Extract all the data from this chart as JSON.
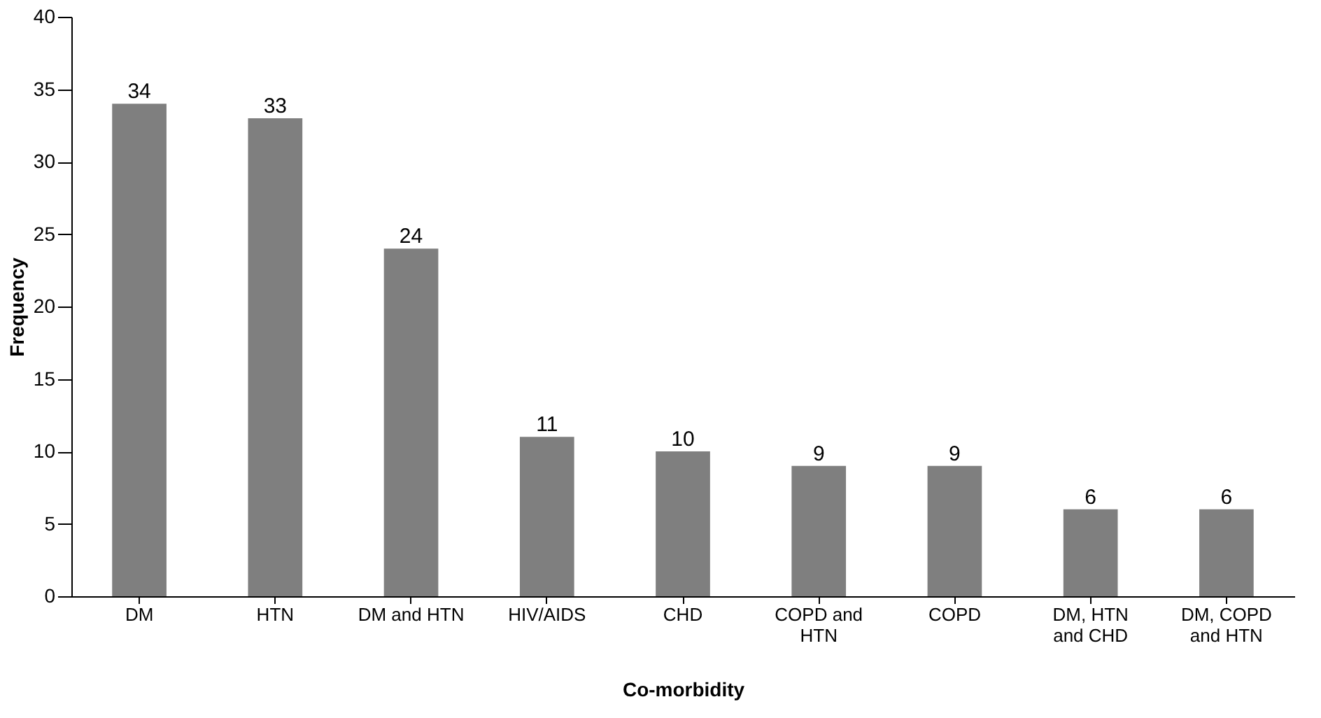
{
  "chart_data": {
    "type": "bar",
    "xlabel": "Co-morbidity",
    "ylabel": "Frequency",
    "categories": [
      "DM",
      "HTN",
      "DM and HTN",
      "HIV/AIDS",
      "CHD",
      "COPD and HTN",
      "COPD",
      "DM, HTN and CHD",
      "DM, COPD and HTN"
    ],
    "values": [
      34,
      33,
      24,
      11,
      10,
      9,
      9,
      6,
      6
    ],
    "color": "#7f7f7f",
    "ylim": [
      0,
      40
    ],
    "yticks": [
      0,
      5,
      10,
      15,
      20,
      25,
      30,
      35,
      40
    ],
    "grid": false,
    "data_labels": true
  }
}
